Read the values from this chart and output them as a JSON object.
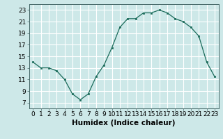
{
  "x": [
    0,
    1,
    2,
    3,
    4,
    5,
    6,
    7,
    8,
    9,
    10,
    11,
    12,
    13,
    14,
    15,
    16,
    17,
    18,
    19,
    20,
    21,
    22,
    23
  ],
  "y": [
    14.0,
    13.0,
    13.0,
    12.5,
    11.0,
    8.5,
    7.5,
    8.5,
    11.5,
    13.5,
    16.5,
    20.0,
    21.5,
    21.5,
    22.5,
    22.5,
    23.0,
    22.5,
    21.5,
    21.0,
    20.0,
    18.5,
    14.0,
    11.5
  ],
  "line_color": "#1a6b5a",
  "marker": "s",
  "marker_size": 2,
  "bg_color": "#cde8e8",
  "grid_color": "#ffffff",
  "xlabel": "Humidex (Indice chaleur)",
  "xlabel_fontsize": 7.5,
  "xlim": [
    -0.5,
    23.5
  ],
  "ylim": [
    6,
    24
  ],
  "yticks": [
    7,
    9,
    11,
    13,
    15,
    17,
    19,
    21,
    23
  ],
  "xticks": [
    0,
    1,
    2,
    3,
    4,
    5,
    6,
    7,
    8,
    9,
    10,
    11,
    12,
    13,
    14,
    15,
    16,
    17,
    18,
    19,
    20,
    21,
    22,
    23
  ],
  "tick_fontsize": 6.5
}
